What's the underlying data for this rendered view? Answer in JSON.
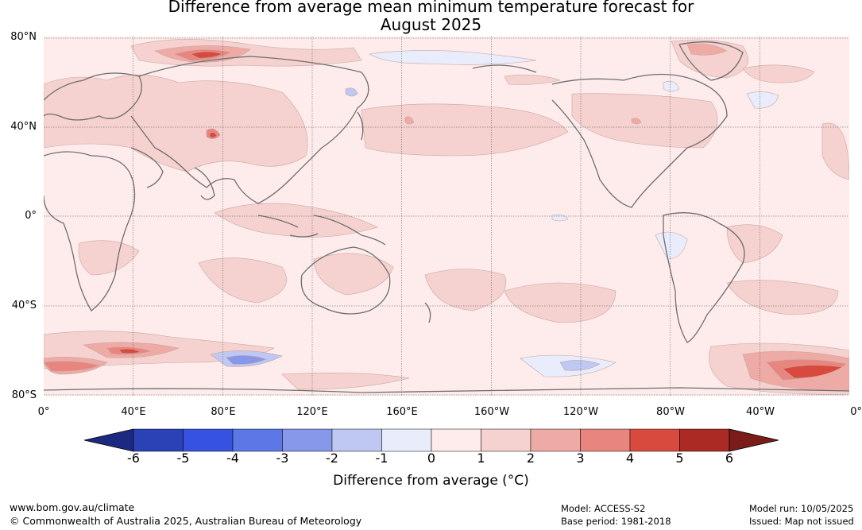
{
  "title_line1": "Difference from average mean minimum temperature forecast for",
  "title_line2": "August 2025",
  "lat_ticks": [
    "80°N",
    "40°N",
    "0°",
    "40°S",
    "80°S"
  ],
  "lon_ticks": [
    "0°",
    "40°E",
    "80°E",
    "120°E",
    "160°E",
    "160°W",
    "120°W",
    "80°W",
    "40°W",
    "0°"
  ],
  "colorbar": {
    "tick_labels": [
      "-6",
      "-5",
      "-4",
      "-3",
      "-2",
      "-1",
      "0",
      "1",
      "2",
      "3",
      "4",
      "5",
      "6"
    ],
    "colors": [
      "#1b2a80",
      "#2a42b6",
      "#3552e0",
      "#5b78e6",
      "#8797ea",
      "#bfc7f3",
      "#e8ecfb",
      "#fdeceb",
      "#f5d2cf",
      "#eeaaa5",
      "#e7857e",
      "#d94a3e",
      "#ab2a24",
      "#7a1c18"
    ],
    "title": "Difference from average (°C)"
  },
  "footer": {
    "website": "www.bom.gov.au/climate",
    "copyright": "© Commonwealth of Australia 2025, Australian Bureau of Meteorology",
    "model": "Model: ACCESS-S2",
    "base_period": "Base period: 1981-2018",
    "model_run": "Model run: 10/05/2025",
    "issued": "Issued: Map not issued"
  }
}
